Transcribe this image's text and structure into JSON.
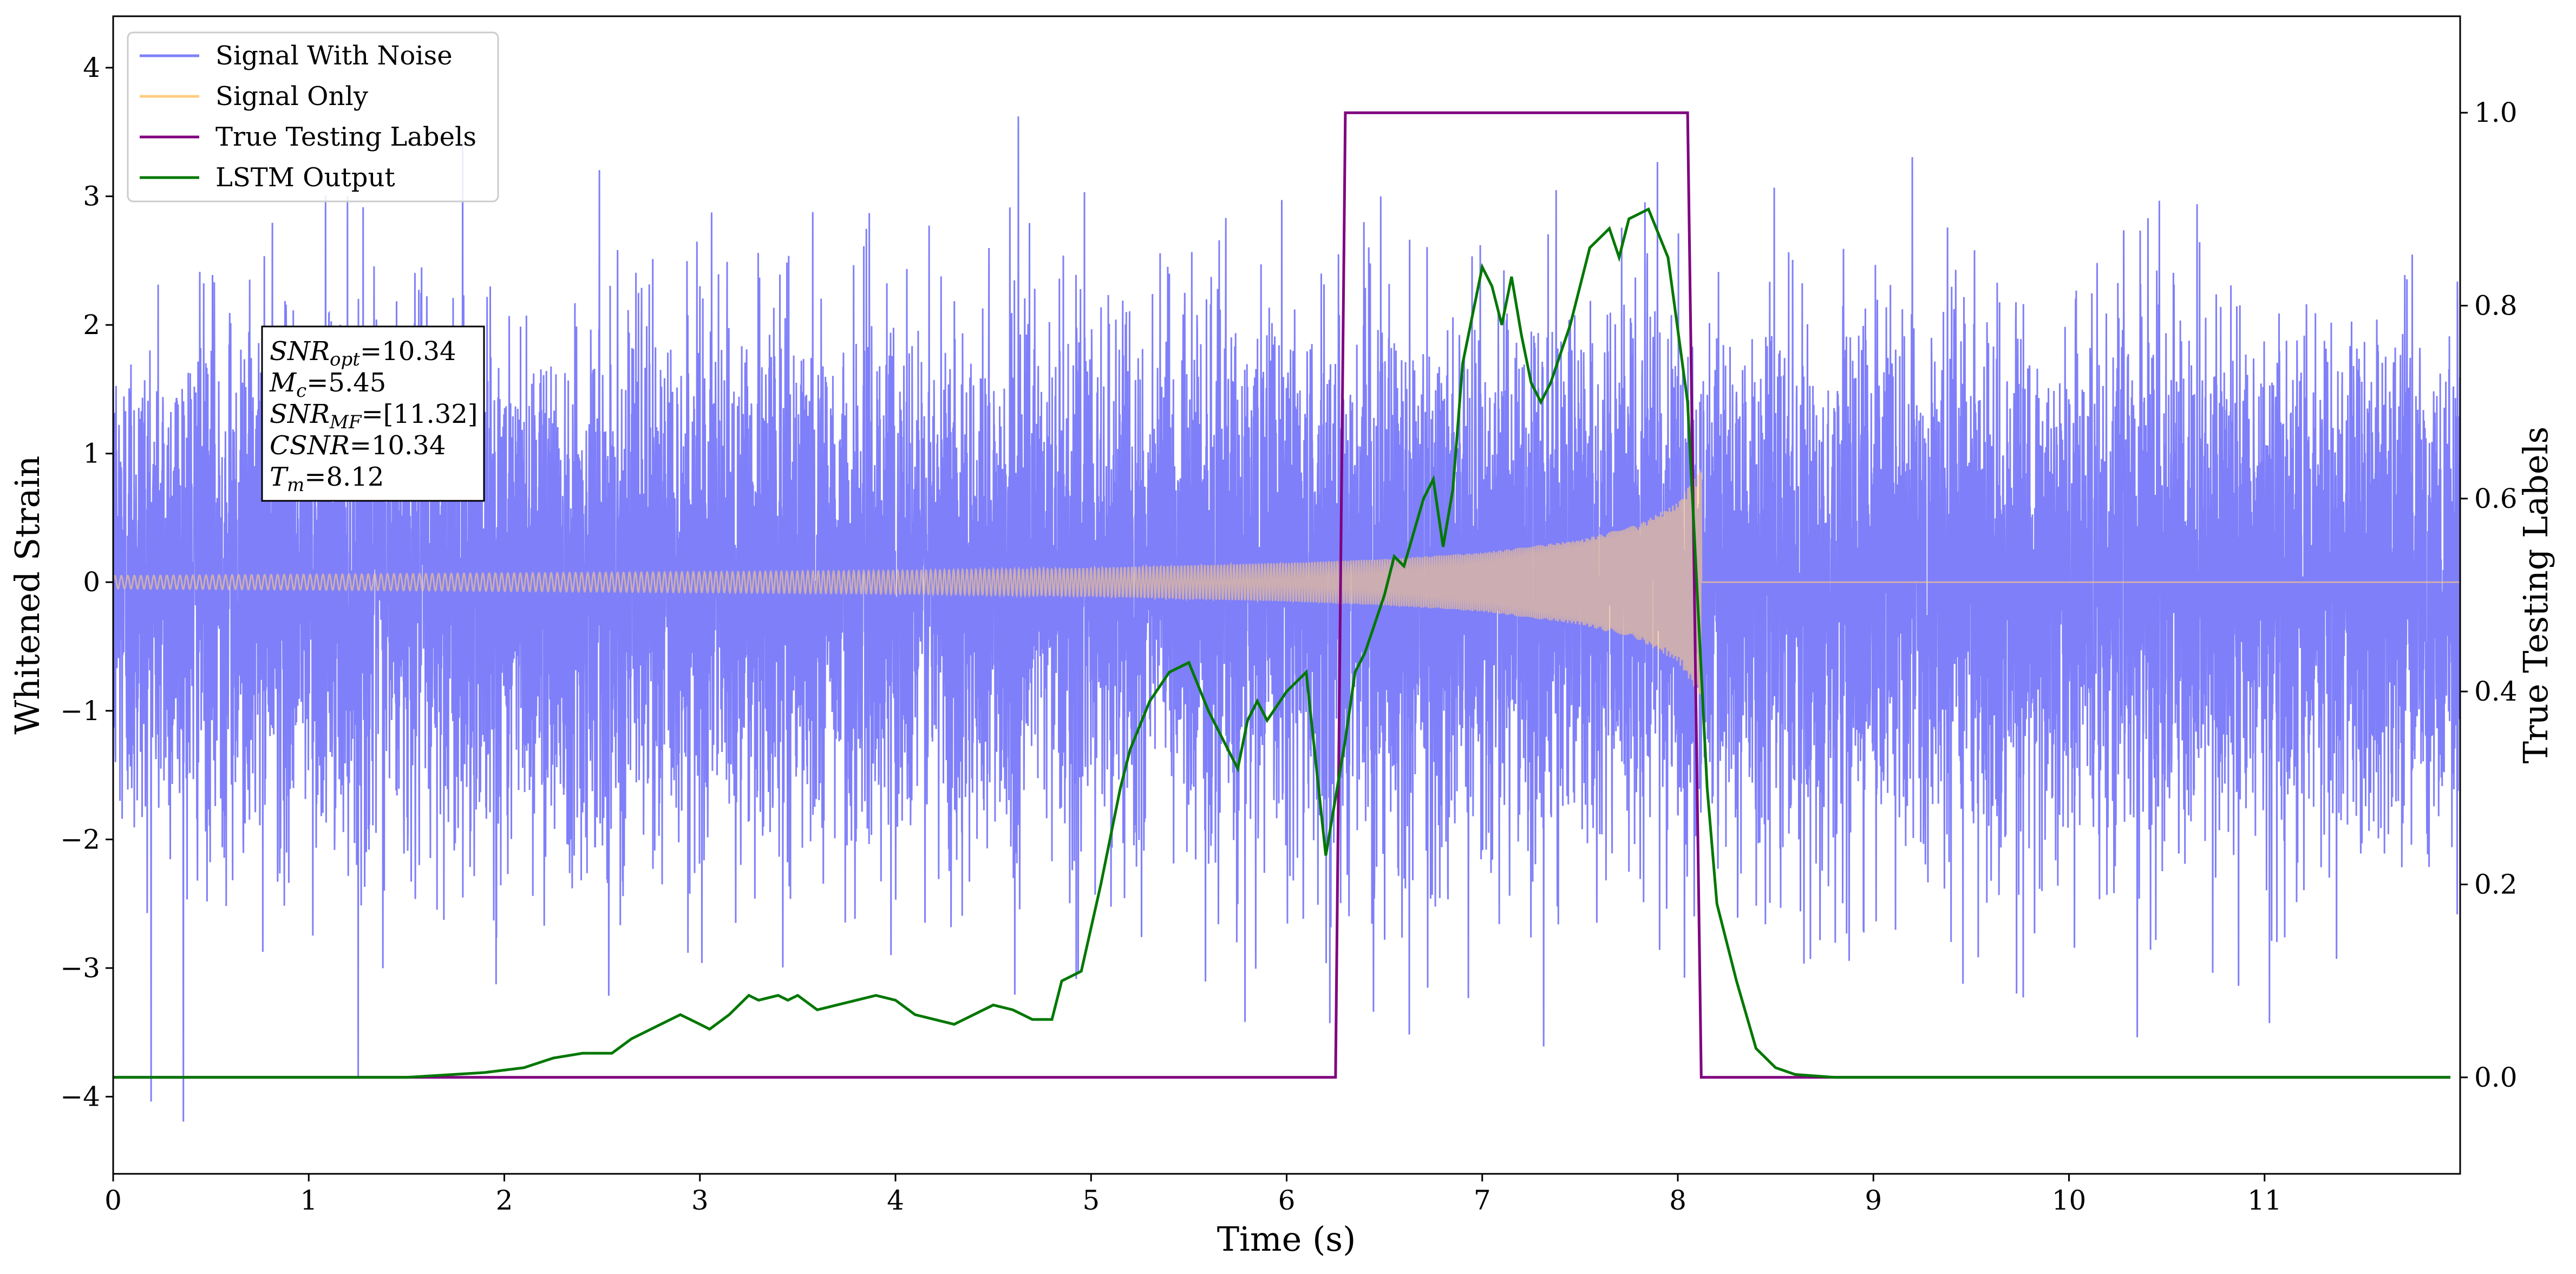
{
  "chart_data": {
    "type": "line",
    "xlabel": "Time (s)",
    "ylabel": "Whitened Strain",
    "ylabel_right": "True Testing Labels",
    "xlim": [
      0,
      12
    ],
    "ylim": [
      -4.6,
      4.4
    ],
    "ylim_right": [
      -0.1,
      1.1
    ],
    "xticks": [
      0,
      1,
      2,
      3,
      4,
      5,
      6,
      7,
      8,
      9,
      10,
      11
    ],
    "yticks": [
      -4,
      -3,
      -2,
      -1,
      0,
      1,
      2,
      3,
      4
    ],
    "yticks_right": [
      0.0,
      0.2,
      0.4,
      0.6,
      0.8,
      1.0
    ],
    "xtick_labels": [
      "0",
      "1",
      "2",
      "3",
      "4",
      "5",
      "6",
      "7",
      "8",
      "9",
      "10",
      "11"
    ],
    "ytick_labels": [
      "−4",
      "−3",
      "−2",
      "−1",
      "0",
      "1",
      "2",
      "3",
      "4"
    ],
    "ytick_labels_right": [
      "0.0",
      "0.2",
      "0.4",
      "0.6",
      "0.8",
      "1.0"
    ],
    "legend": {
      "position": "top-left",
      "entries": [
        {
          "label": "Signal With Noise",
          "color": "#7f7ffa"
        },
        {
          "label": "Signal Only",
          "color": "#ffcc80"
        },
        {
          "label": "True Testing Labels",
          "color": "#800080"
        },
        {
          "label": "LSTM Output",
          "color": "#007700"
        }
      ]
    },
    "annotation": {
      "lines": [
        {
          "base": "SNR",
          "sub": "opt",
          "rest": "=10.34"
        },
        {
          "base": "M",
          "sub": "c",
          "rest": "=5.45"
        },
        {
          "base": "SNR",
          "sub": "MF",
          "rest": "=[11.32]"
        },
        {
          "base": "CSNR",
          "sub": "",
          "rest": "=10.34"
        },
        {
          "base": "T",
          "sub": "m",
          "rest": "=8.12"
        }
      ]
    },
    "series": [
      {
        "name": "Signal With Noise",
        "axis": "left",
        "style": "noise",
        "color": "#7f7ffa",
        "t_range": [
          0,
          12
        ],
        "approx_std": 1.0,
        "approx_range": [
          -4.2,
          3.95
        ]
      },
      {
        "name": "Signal Only",
        "axis": "left",
        "style": "chirp",
        "color": "#ffcc80",
        "t_range": [
          0,
          12
        ],
        "merger_time": 8.12,
        "envelope": {
          "t": [
            0,
            1,
            2,
            3,
            4,
            5,
            6,
            6.5,
            7,
            7.5,
            7.8,
            8.0,
            8.12
          ],
          "amp": [
            0.05,
            0.06,
            0.07,
            0.08,
            0.09,
            0.11,
            0.15,
            0.18,
            0.23,
            0.33,
            0.45,
            0.62,
            0.9
          ]
        }
      },
      {
        "name": "True Testing Labels",
        "axis": "right",
        "color": "#800080",
        "x": [
          0,
          6.25,
          6.3,
          8.05,
          8.12,
          11.95
        ],
        "y": [
          0,
          0,
          1,
          1,
          0,
          0
        ]
      },
      {
        "name": "LSTM Output",
        "axis": "right",
        "color": "#007700",
        "x": [
          0,
          1.0,
          1.5,
          1.9,
          2.1,
          2.25,
          2.4,
          2.55,
          2.65,
          2.75,
          2.85,
          2.9,
          3.0,
          3.05,
          3.15,
          3.25,
          3.3,
          3.4,
          3.45,
          3.5,
          3.6,
          3.7,
          3.8,
          3.9,
          4.0,
          4.1,
          4.2,
          4.3,
          4.4,
          4.5,
          4.6,
          4.7,
          4.8,
          4.85,
          4.95,
          5.05,
          5.15,
          5.2,
          5.3,
          5.4,
          5.5,
          5.6,
          5.7,
          5.75,
          5.8,
          5.85,
          5.9,
          6.0,
          6.1,
          6.2,
          6.3,
          6.35,
          6.4,
          6.45,
          6.5,
          6.55,
          6.6,
          6.7,
          6.75,
          6.8,
          6.85,
          6.9,
          6.95,
          7.0,
          7.05,
          7.1,
          7.15,
          7.2,
          7.25,
          7.3,
          7.35,
          7.45,
          7.55,
          7.6,
          7.65,
          7.7,
          7.75,
          7.85,
          7.95,
          8.05,
          8.1,
          8.15,
          8.2,
          8.3,
          8.4,
          8.5,
          8.6,
          8.8,
          9.0,
          11.95
        ],
        "y": [
          0.0,
          0.0,
          0.0,
          0.005,
          0.01,
          0.02,
          0.025,
          0.025,
          0.04,
          0.05,
          0.06,
          0.065,
          0.055,
          0.05,
          0.065,
          0.085,
          0.08,
          0.085,
          0.08,
          0.085,
          0.07,
          0.075,
          0.08,
          0.085,
          0.08,
          0.065,
          0.06,
          0.055,
          0.065,
          0.075,
          0.07,
          0.06,
          0.06,
          0.1,
          0.11,
          0.2,
          0.3,
          0.34,
          0.39,
          0.42,
          0.43,
          0.38,
          0.34,
          0.32,
          0.37,
          0.39,
          0.37,
          0.4,
          0.42,
          0.23,
          0.35,
          0.42,
          0.44,
          0.47,
          0.5,
          0.54,
          0.53,
          0.6,
          0.62,
          0.55,
          0.61,
          0.74,
          0.79,
          0.84,
          0.82,
          0.78,
          0.83,
          0.77,
          0.72,
          0.7,
          0.72,
          0.78,
          0.86,
          0.87,
          0.88,
          0.85,
          0.89,
          0.9,
          0.85,
          0.7,
          0.5,
          0.3,
          0.18,
          0.1,
          0.03,
          0.01,
          0.003,
          0.0,
          0.0,
          0.0
        ]
      }
    ]
  }
}
